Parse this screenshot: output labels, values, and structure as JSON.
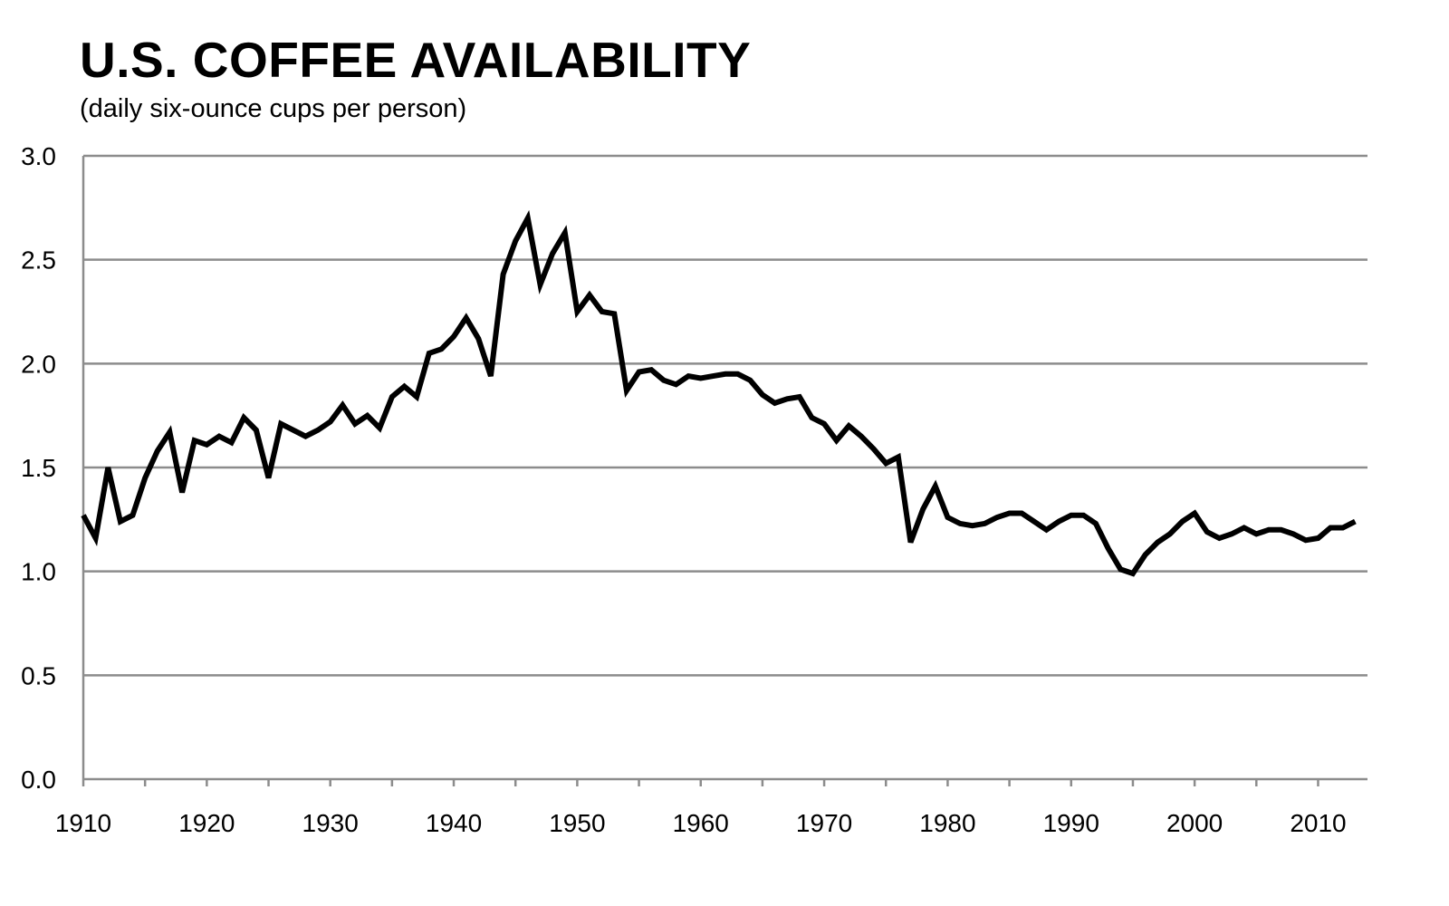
{
  "chart_data": {
    "type": "line",
    "title": "U.S. COFFEE AVAILABILITY",
    "subtitle": "(daily six-ounce cups per person)",
    "xlabel": "",
    "ylabel": "",
    "xlim": [
      1910,
      2014
    ],
    "ylim": [
      0,
      3
    ],
    "x_ticks": [
      1910,
      1920,
      1930,
      1940,
      1950,
      1960,
      1970,
      1980,
      1990,
      2000,
      2010
    ],
    "y_ticks": [
      "0.0",
      "0.5",
      "1.0",
      "1.5",
      "2.0",
      "2.5",
      "3.0"
    ],
    "grid": "horizontal",
    "legend": "none",
    "colors": {
      "line": "#000000",
      "grid": "#8c8c8c",
      "axis": "#8c8c8c"
    },
    "series": [
      {
        "x": [
          1910,
          1911,
          1912,
          1913,
          1914,
          1915,
          1916,
          1917,
          1918,
          1919,
          1920,
          1921,
          1922,
          1923,
          1924,
          1925,
          1926,
          1927,
          1928,
          1929,
          1930,
          1931,
          1932,
          1933,
          1934,
          1935,
          1936,
          1937,
          1938,
          1939,
          1940,
          1941,
          1942,
          1943,
          1944,
          1945,
          1946,
          1947,
          1948,
          1949,
          1950,
          1951,
          1952,
          1953,
          1954,
          1955,
          1956,
          1957,
          1958,
          1959,
          1960,
          1961,
          1962,
          1963,
          1964,
          1965,
          1966,
          1967,
          1968,
          1969,
          1970,
          1971,
          1972,
          1973,
          1974,
          1975,
          1976,
          1977,
          1978,
          1979,
          1980,
          1981,
          1982,
          1983,
          1984,
          1985,
          1986,
          1987,
          1988,
          1989,
          1990,
          1991,
          1992,
          1993,
          1994,
          1995,
          1996,
          1997,
          1998,
          1999,
          2000,
          2001,
          2002,
          2003,
          2004,
          2005,
          2006,
          2007,
          2008,
          2009,
          2010,
          2011,
          2012,
          2013
        ],
        "values": [
          1.27,
          1.16,
          1.5,
          1.24,
          1.27,
          1.45,
          1.58,
          1.67,
          1.38,
          1.63,
          1.61,
          1.65,
          1.62,
          1.74,
          1.68,
          1.45,
          1.71,
          1.68,
          1.65,
          1.68,
          1.72,
          1.8,
          1.71,
          1.75,
          1.69,
          1.84,
          1.89,
          1.84,
          2.05,
          2.07,
          2.13,
          2.22,
          2.12,
          1.94,
          2.43,
          2.59,
          2.7,
          2.38,
          2.53,
          2.63,
          2.25,
          2.33,
          2.25,
          2.24,
          1.87,
          1.96,
          1.97,
          1.92,
          1.9,
          1.94,
          1.93,
          1.94,
          1.95,
          1.95,
          1.92,
          1.85,
          1.81,
          1.83,
          1.84,
          1.74,
          1.71,
          1.63,
          1.7,
          1.65,
          1.59,
          1.52,
          1.55,
          1.14,
          1.3,
          1.41,
          1.26,
          1.23,
          1.22,
          1.23,
          1.26,
          1.28,
          1.28,
          1.24,
          1.2,
          1.24,
          1.27,
          1.27,
          1.23,
          1.11,
          1.01,
          0.99,
          1.08,
          1.14,
          1.18,
          1.24,
          1.28,
          1.19,
          1.16,
          1.18,
          1.21,
          1.18,
          1.2,
          1.2,
          1.18,
          1.15,
          1.16,
          1.21,
          1.21,
          1.24
        ]
      }
    ]
  }
}
